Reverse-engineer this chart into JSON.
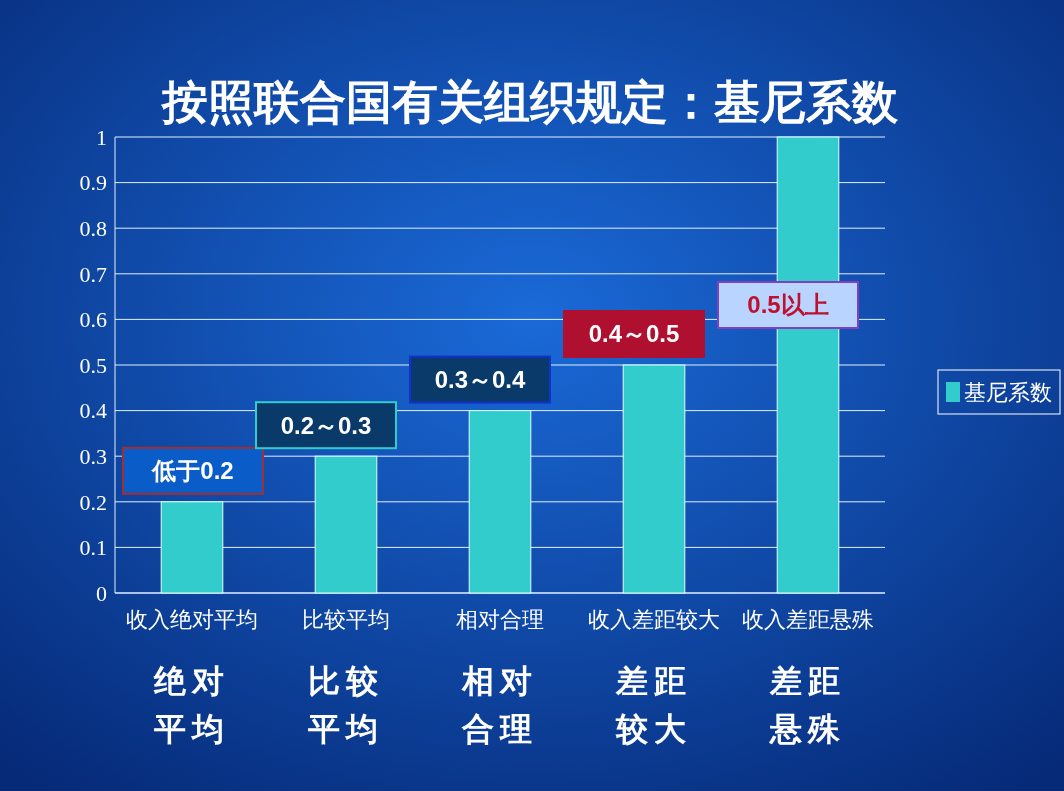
{
  "chart_data": {
    "type": "bar",
    "title": "按照联合国有关组织规定：基尼系数",
    "categories": [
      "收入绝对平均",
      "比较平均",
      "相对合理",
      "收入差距较大",
      "收入差距悬殊"
    ],
    "series": [
      {
        "name": "基尼系数",
        "color": "#33cccc",
        "values": [
          0.2,
          0.3,
          0.4,
          0.5,
          1.0
        ]
      }
    ],
    "ylim": [
      0,
      1
    ],
    "yticks": [
      0,
      0.1,
      0.2,
      0.3,
      0.4,
      0.5,
      0.6,
      0.7,
      0.8,
      0.9,
      1
    ],
    "grid": "y",
    "legend": "right",
    "annotations": [
      "低于0.2",
      "0.2～0.3",
      "0.3～0.4",
      "0.4～0.5",
      "0.5以上",
      "绝对平均",
      "比较平均",
      "相对合理",
      "差距较大",
      "差距悬殊"
    ]
  }
}
